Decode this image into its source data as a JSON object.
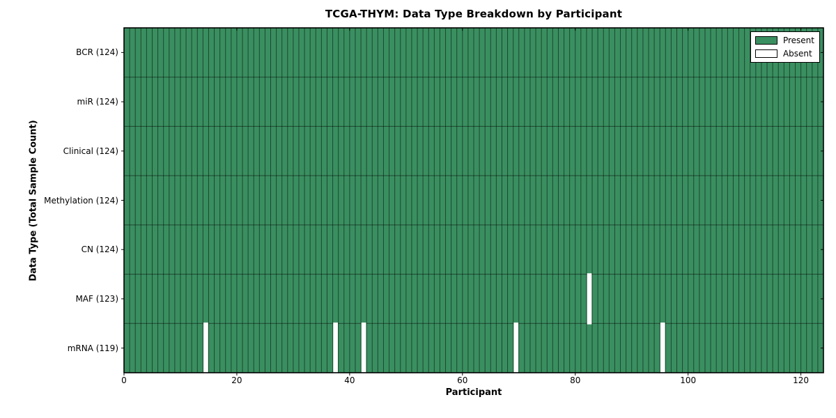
{
  "title": "TCGA-THYM: Data Type Breakdown by Participant",
  "axes": {
    "xlabel": "Participant",
    "ylabel": "Data Type (Total Sample Count)"
  },
  "legend": {
    "position": "upper-right",
    "items": [
      {
        "label": "Present",
        "color": "#3A8F60"
      },
      {
        "label": "Absent",
        "color": "#FFFFFF"
      }
    ]
  },
  "colors": {
    "present": "#3A8F60",
    "absent": "#FFFFFF",
    "cell_edge": "rgba(0,0,0,0.5)",
    "frame": "#000000",
    "background": "#FFFFFF",
    "text": "#000000"
  },
  "chart_data": {
    "type": "heatmap",
    "title": "TCGA-THYM: Data Type Breakdown by Participant",
    "xlabel": "Participant",
    "ylabel": "Data Type (Total Sample Count)",
    "n_participants": 124,
    "x_range": [
      0,
      124
    ],
    "x_ticks": [
      0,
      20,
      40,
      60,
      80,
      100,
      120
    ],
    "legend_entries": [
      "Present",
      "Absent"
    ],
    "rows": [
      {
        "label": "BCR",
        "total_samples": 124,
        "tick_label": "BCR (124)",
        "absent_participants": []
      },
      {
        "label": "miR",
        "total_samples": 124,
        "tick_label": "miR (124)",
        "absent_participants": []
      },
      {
        "label": "Clinical",
        "total_samples": 124,
        "tick_label": "Clinical (124)",
        "absent_participants": []
      },
      {
        "label": "Methylation",
        "total_samples": 124,
        "tick_label": "Methylation (124)",
        "absent_participants": []
      },
      {
        "label": "CN",
        "total_samples": 124,
        "tick_label": "CN (124)",
        "absent_participants": []
      },
      {
        "label": "MAF",
        "total_samples": 123,
        "tick_label": "MAF (123)",
        "absent_participants": [
          82
        ]
      },
      {
        "label": "mRNA",
        "total_samples": 119,
        "tick_label": "mRNA (119)",
        "absent_participants": [
          14,
          37,
          42,
          69,
          95
        ]
      }
    ]
  }
}
